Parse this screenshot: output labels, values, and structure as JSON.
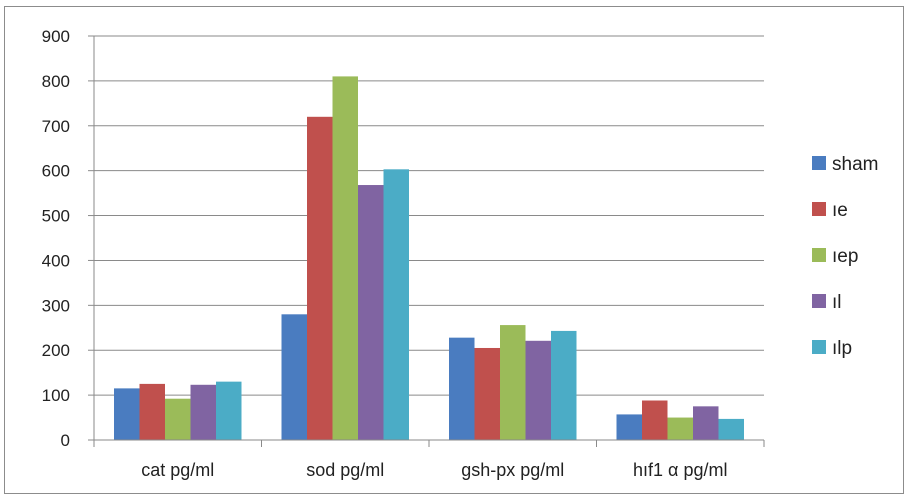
{
  "chart_data": {
    "type": "bar",
    "categories": [
      "cat pg/ml",
      "sod pg/ml",
      "gsh-px pg/ml",
      "hıf1 α pg/ml"
    ],
    "series": [
      {
        "name": "sham",
        "color": "#4a7cc0",
        "values": [
          115,
          280,
          228,
          57
        ]
      },
      {
        "name": "ıe",
        "color": "#c0504d",
        "values": [
          125,
          720,
          205,
          88
        ]
      },
      {
        "name": "ıep",
        "color": "#9bbb59",
        "values": [
          92,
          810,
          256,
          50
        ]
      },
      {
        "name": "ıl",
        "color": "#8064a2",
        "values": [
          123,
          568,
          221,
          75
        ]
      },
      {
        "name": "ılp",
        "color": "#4bacc6",
        "values": [
          130,
          603,
          243,
          47
        ]
      }
    ],
    "yticks": [
      "0",
      "100",
      "200",
      "300",
      "400",
      "500",
      "600",
      "700",
      "800",
      "900"
    ],
    "ylim": [
      0,
      900
    ],
    "grid": true,
    "legend_position": "right"
  }
}
